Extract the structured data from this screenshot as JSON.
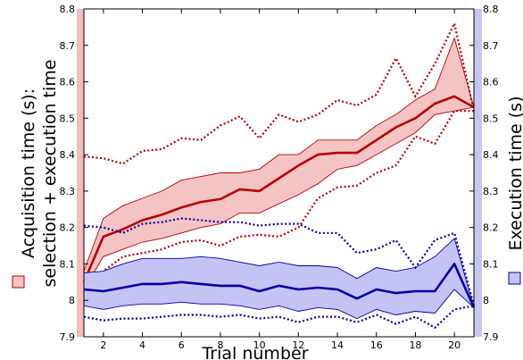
{
  "chart_data": {
    "type": "line",
    "xlabel": "Trial number",
    "ylabel_left_line1": "Acquisition time (s):",
    "ylabel_left_line2": "selection + execution time",
    "ylabel_right": "Execution time (s)",
    "xlim": [
      1,
      21
    ],
    "ylim": [
      7.9,
      8.8
    ],
    "x_ticks": [
      2,
      4,
      6,
      8,
      10,
      12,
      14,
      16,
      18,
      20
    ],
    "y_ticks": [
      7.9,
      8,
      8.1,
      8.2,
      8.3,
      8.4,
      8.5,
      8.6,
      8.7,
      8.8
    ],
    "y_tick_labels": [
      "7.9",
      "8",
      "8.1",
      "8.2",
      "8.3",
      "8.4",
      "8.5",
      "8.6",
      "8.7",
      "8.8"
    ],
    "colors": {
      "acquisition": "#b80000",
      "acquisition_fill": "#f4c4c4",
      "acquisition_edge_band": "#f4bcbc",
      "execution": "#0000a8",
      "execution_fill": "#c4c4f4",
      "execution_edge_band": "#c6c6f4"
    },
    "x": [
      1,
      2,
      3,
      4,
      5,
      6,
      7,
      8,
      9,
      10,
      11,
      12,
      13,
      14,
      15,
      16,
      17,
      18,
      19,
      20,
      21
    ],
    "series": [
      {
        "id": "acquisition",
        "mean": [
          8.05,
          8.175,
          8.195,
          8.22,
          8.235,
          8.255,
          8.27,
          8.278,
          8.305,
          8.3,
          8.335,
          8.37,
          8.4,
          8.405,
          8.405,
          8.44,
          8.475,
          8.5,
          8.54,
          8.56,
          8.53
        ],
        "ci_upper": [
          8.08,
          8.225,
          8.26,
          8.28,
          8.3,
          8.33,
          8.34,
          8.35,
          8.35,
          8.36,
          8.4,
          8.4,
          8.44,
          8.44,
          8.44,
          8.48,
          8.51,
          8.55,
          8.58,
          8.72,
          8.53
        ],
        "ci_lower": [
          8.03,
          8.12,
          8.14,
          8.16,
          8.17,
          8.185,
          8.2,
          8.21,
          8.24,
          8.24,
          8.265,
          8.29,
          8.32,
          8.36,
          8.37,
          8.4,
          8.43,
          8.46,
          8.51,
          8.52,
          8.53
        ],
        "range_upper": [
          8.395,
          8.39,
          8.375,
          8.41,
          8.415,
          8.445,
          8.44,
          8.48,
          8.505,
          8.445,
          8.51,
          8.49,
          8.51,
          8.55,
          8.535,
          8.565,
          8.665,
          8.56,
          8.65,
          8.76,
          8.52
        ],
        "range_lower": [
          7.99,
          8.08,
          8.12,
          8.13,
          8.14,
          8.16,
          8.165,
          8.15,
          8.175,
          8.18,
          8.175,
          8.2,
          8.28,
          8.31,
          8.315,
          8.35,
          8.37,
          8.45,
          8.43,
          8.52,
          8.52
        ]
      },
      {
        "id": "execution",
        "mean": [
          8.03,
          8.025,
          8.035,
          8.045,
          8.045,
          8.05,
          8.045,
          8.04,
          8.04,
          8.025,
          8.04,
          8.03,
          8.035,
          8.03,
          8.005,
          8.03,
          8.02,
          8.025,
          8.025,
          8.1,
          7.98
        ],
        "ci_upper": [
          8.075,
          8.08,
          8.1,
          8.115,
          8.115,
          8.115,
          8.12,
          8.115,
          8.105,
          8.095,
          8.105,
          8.095,
          8.095,
          8.09,
          8.06,
          8.09,
          8.08,
          8.09,
          8.12,
          8.17,
          7.98
        ],
        "ci_lower": [
          7.985,
          7.975,
          7.985,
          7.99,
          7.99,
          7.995,
          7.99,
          7.99,
          7.985,
          7.975,
          7.985,
          7.97,
          7.98,
          7.975,
          7.95,
          7.975,
          7.96,
          7.97,
          7.965,
          8.03,
          7.98
        ],
        "range_upper": [
          8.205,
          8.2,
          8.185,
          8.21,
          8.215,
          8.225,
          8.22,
          8.215,
          8.215,
          8.205,
          8.21,
          8.21,
          8.185,
          8.185,
          8.13,
          8.14,
          8.165,
          8.09,
          8.165,
          8.185,
          7.985
        ],
        "range_lower": [
          7.955,
          7.945,
          7.95,
          7.95,
          7.955,
          7.96,
          7.96,
          7.955,
          7.96,
          7.95,
          7.955,
          7.94,
          7.955,
          7.955,
          7.94,
          7.96,
          7.935,
          7.955,
          7.925,
          7.975,
          7.985
        ]
      }
    ]
  }
}
